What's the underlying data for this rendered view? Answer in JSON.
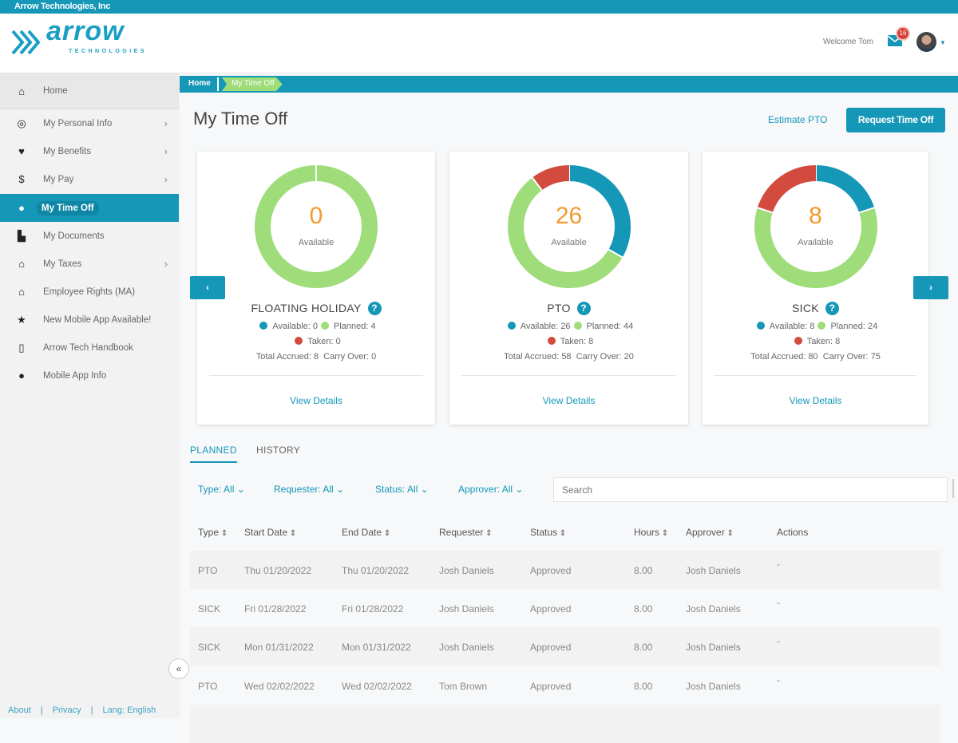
{
  "company": "Arrow Technologies, Inc",
  "logo": {
    "word": "arrow",
    "sub": "TECHNOLOGIES"
  },
  "header": {
    "welcome": "Welcome Tom",
    "mail_badge": "16"
  },
  "colors": {
    "brand": "#1597b8",
    "available": "#1597b8",
    "planned": "#9fdc7a",
    "taken": "#d24b3e",
    "number": "#f39a2e"
  },
  "sidebar": {
    "items": [
      {
        "label": "Home",
        "icon": "home-icon",
        "glyph": "⌂"
      },
      {
        "label": "My Personal Info",
        "icon": "user-circle-icon",
        "glyph": "◎",
        "chevron": true
      },
      {
        "label": "My Benefits",
        "icon": "heart-icon",
        "glyph": "♥",
        "chevron": true
      },
      {
        "label": "My Pay",
        "icon": "dollar-icon",
        "glyph": "$",
        "chevron": true
      },
      {
        "label": "My Time Off",
        "icon": "clock-icon",
        "glyph": "●",
        "active": true
      },
      {
        "label": "My Documents",
        "icon": "document-icon",
        "glyph": "▙"
      },
      {
        "label": "My Taxes",
        "icon": "bank-icon",
        "glyph": "⌂",
        "chevron": true
      },
      {
        "label": "Employee Rights (MA)",
        "icon": "bank-icon",
        "glyph": "⌂"
      },
      {
        "label": "New Mobile App Available!",
        "icon": "star-icon",
        "glyph": "★"
      },
      {
        "label": "Arrow Tech Handbook",
        "icon": "file-icon",
        "glyph": "▯"
      },
      {
        "label": "Mobile App Info",
        "icon": "info-icon",
        "glyph": "●"
      }
    ],
    "collapse": "«"
  },
  "footer": {
    "about": "About",
    "sep": "|",
    "privacy": "Privacy",
    "lang": "Lang: English"
  },
  "breadcrumb": [
    "Home",
    "My Time Off"
  ],
  "page": {
    "title": "My Time Off",
    "estimate": "Estimate PTO",
    "request": "Request Time Off"
  },
  "cards": [
    {
      "title": "FLOATING HOLIDAY",
      "available": 0,
      "planned": 4,
      "taken": 0,
      "accrued": 8,
      "carry": 0,
      "center": "0"
    },
    {
      "title": "PTO",
      "available": 26,
      "planned": 44,
      "taken": 8,
      "accrued": 58,
      "carry": 20,
      "center": "26"
    },
    {
      "title": "SICK",
      "available": 8,
      "planned": 24,
      "taken": 8,
      "accrued": 80,
      "carry": 75,
      "center": "8"
    }
  ],
  "card_labels": {
    "available_center": "Available",
    "available": "Available:",
    "planned": "Planned:",
    "taken": "Taken:",
    "accrued": "Total Accrued:",
    "carry": "Carry Over:",
    "view": "View Details",
    "help": "?"
  },
  "nav": {
    "prev": "‹",
    "next": "›"
  },
  "tabs": [
    "PLANNED",
    "HISTORY"
  ],
  "filters": [
    "Type: All",
    "Requester: All",
    "Status: All",
    "Approver: All"
  ],
  "search_placeholder": "Search",
  "table": {
    "columns": [
      "Type",
      "Start Date",
      "End Date",
      "Requester",
      "Status",
      "Hours",
      "Approver",
      "Actions"
    ],
    "rows": [
      [
        "PTO",
        "Thu 01/20/2022",
        "Thu 01/20/2022",
        "Josh Daniels",
        "Approved",
        "8.00",
        "Josh Daniels",
        "-"
      ],
      [
        "SICK",
        "Fri 01/28/2022",
        "Fri 01/28/2022",
        "Josh Daniels",
        "Approved",
        "8.00",
        "Josh Daniels",
        "-"
      ],
      [
        "SICK",
        "Mon 01/31/2022",
        "Mon 01/31/2022",
        "Josh Daniels",
        "Approved",
        "8.00",
        "Josh Daniels",
        "-"
      ],
      [
        "PTO",
        "Wed 02/02/2022",
        "Wed 02/02/2022",
        "Tom Brown",
        "Approved",
        "8.00",
        "Josh Daniels",
        "-"
      ]
    ]
  }
}
